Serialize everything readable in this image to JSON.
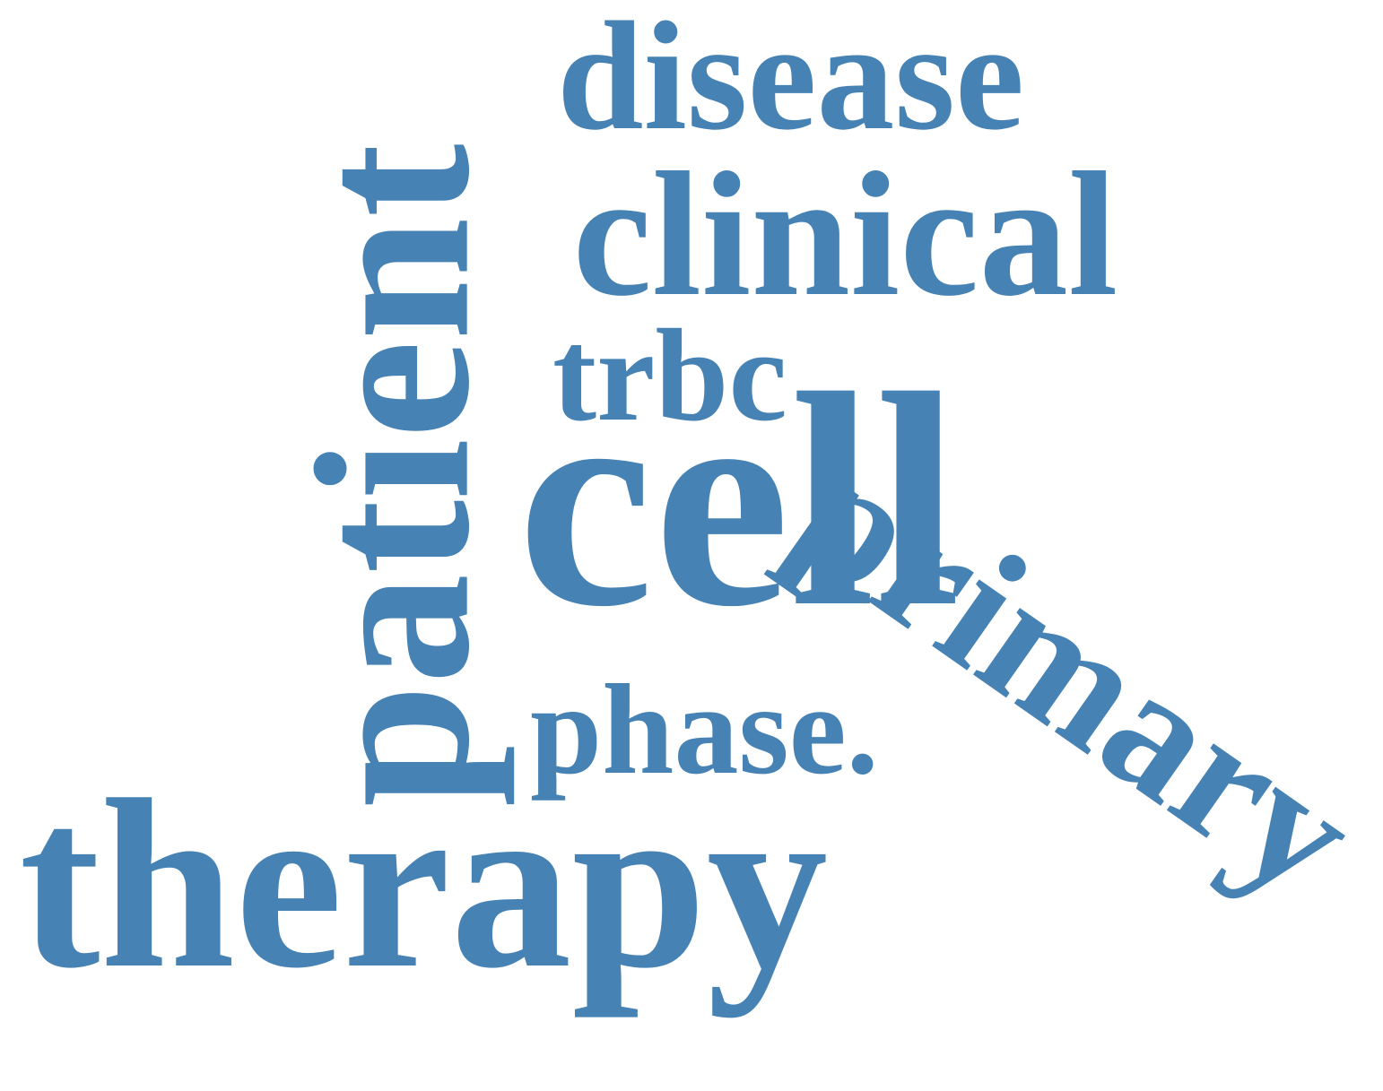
{
  "word_color": "#4682b4",
  "background_color": "#ffffff",
  "words": {
    "cell": "cell",
    "clinical": "clinical",
    "disease": "disease",
    "patient": "patient",
    "primary": "primary",
    "therapy": "therapy",
    "phase": "phase.",
    "trbc": "trbc"
  }
}
